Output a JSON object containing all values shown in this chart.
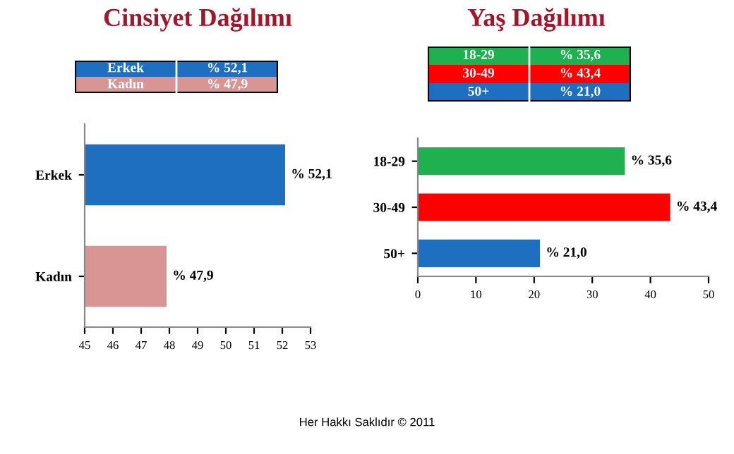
{
  "chart_data": [
    {
      "type": "bar",
      "orientation": "horizontal",
      "title": "Cinsiyet Dağılımı",
      "categories": [
        "Erkek",
        "Kadın"
      ],
      "values": [
        52.1,
        47.9
      ],
      "colors": [
        "#1f6fc1",
        "#d99594"
      ],
      "value_labels": [
        "% 52,1",
        "% 47,9"
      ],
      "xlim": [
        45,
        53
      ],
      "xticks": [
        45,
        46,
        47,
        48,
        49,
        50,
        51,
        52,
        53
      ],
      "grid": false,
      "legend": false,
      "annotations": [
        "Her Hakkı Saklıdır © 2011"
      ]
    },
    {
      "type": "bar",
      "orientation": "horizontal",
      "title": "Yaş Dağılımı",
      "categories": [
        "18-29",
        "30-49",
        "50+"
      ],
      "values": [
        35.6,
        43.4,
        21.0
      ],
      "colors": [
        "#1fb04f",
        "#ff0000",
        "#1f6fc1"
      ],
      "value_labels": [
        "% 35,6",
        "% 43,4",
        "% 21,0"
      ],
      "xlim": [
        0,
        50
      ],
      "xticks": [
        0,
        10,
        20,
        30,
        40,
        50
      ],
      "grid": false,
      "legend": false
    }
  ]
}
